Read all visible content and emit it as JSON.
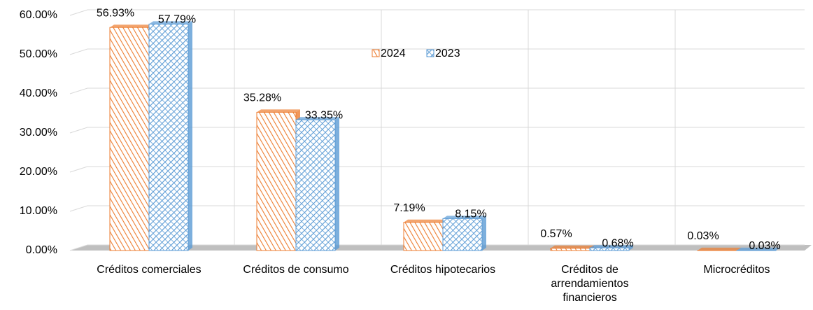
{
  "chart_data": {
    "type": "bar",
    "categories": [
      "Créditos comerciales",
      "Créditos de consumo",
      "Créditos hipotecarios",
      "Créditos de arrendamientos financieros",
      "Microcréditos"
    ],
    "series": [
      {
        "name": "2024",
        "color": "#ed7d31",
        "values": [
          56.93,
          35.28,
          7.19,
          0.57,
          0.03
        ],
        "value_labels": [
          "56.93%",
          "35.28%",
          "7.19%",
          "0.57%",
          "0.03%"
        ]
      },
      {
        "name": "2023",
        "color": "#5b9bd5",
        "values": [
          57.79,
          33.35,
          8.15,
          0.68,
          0.03
        ],
        "value_labels": [
          "57.79%",
          "33.35%",
          "8.15%",
          "0.68%",
          "0.03%"
        ]
      }
    ],
    "ylim": [
      0,
      60
    ],
    "yticks": [
      {
        "value": 0,
        "label": "0.00%"
      },
      {
        "value": 10,
        "label": "10.00%"
      },
      {
        "value": 20,
        "label": "20.00%"
      },
      {
        "value": 30,
        "label": "30.00%"
      },
      {
        "value": 40,
        "label": "40.00%"
      },
      {
        "value": 50,
        "label": "50.00%"
      },
      {
        "value": 60,
        "label": "60.00%"
      }
    ],
    "grid": true
  }
}
